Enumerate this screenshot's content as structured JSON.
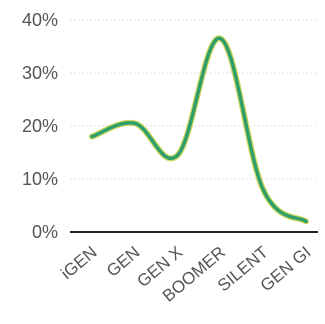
{
  "chart_data": {
    "type": "line",
    "title": "",
    "xlabel": "",
    "ylabel": "",
    "categories": [
      "iGEN",
      "GEN",
      "GEN X",
      "BOOMER",
      "SILENT",
      "GEN GI"
    ],
    "series": [
      {
        "values": [
          18,
          20.5,
          14.5,
          36.5,
          8,
          2
        ],
        "color": "#2e9e6a"
      }
    ],
    "ylim": [
      0,
      40
    ],
    "yticks": [
      0,
      10,
      20,
      30,
      40
    ],
    "ytick_labels": [
      "0%",
      "10%",
      "20%",
      "30%",
      "40%"
    ],
    "grid": true,
    "legend": "none",
    "line_color": "#2e9e6a",
    "line_glow_color": "#c4ce3a"
  }
}
